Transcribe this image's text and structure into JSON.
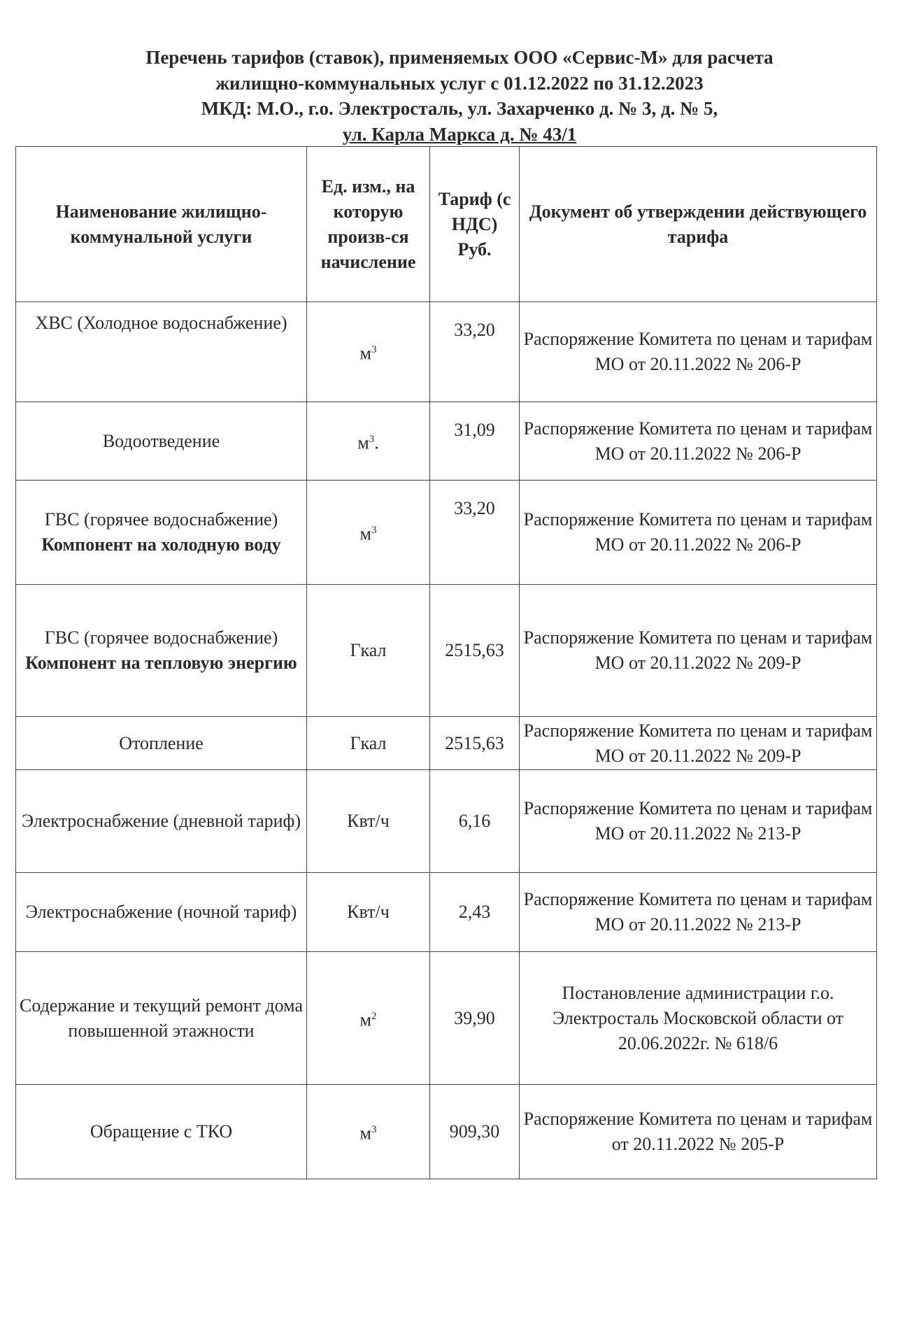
{
  "title": {
    "line1": "Перечень тарифов (ставок), применяемых ООО «Сервис-М» для расчета",
    "line2": "жилищно-коммунальных услуг с 01.12.2022 по 31.12.2023",
    "line3": "МКД: М.О., г.о. Электросталь, ул. Захарченко д. № 3, д. № 5,",
    "line4": "ул. Карла Маркса д. № 43/1"
  },
  "table": {
    "headers": [
      "Наименование жилищно-коммунальной услуги",
      "Ед. изм., на которую произв-ся начисление",
      "Тариф (с НДС) Руб.",
      "Документ об утверждении действующего тарифа"
    ],
    "rows": [
      {
        "service": "ХВС (Холодное водоснабжение)",
        "service_bold": "",
        "unit": "м",
        "unit_sup": "3",
        "unit_suffix": "",
        "tariff": "33,20",
        "document": "Распоряжение Комитета по ценам и тарифам МО от 20.11.2022 № 206-Р"
      },
      {
        "service": "Водоотведение",
        "service_bold": "",
        "unit": "м",
        "unit_sup": "3",
        "unit_suffix": ".",
        "tariff": "31,09",
        "document": "Распоряжение Комитета по ценам и тарифам МО от 20.11.2022 № 206-Р"
      },
      {
        "service": "ГВС (горячее водоснабжение)",
        "service_bold": "Компонент на холодную воду",
        "unit": "м",
        "unit_sup": "3",
        "unit_suffix": "",
        "tariff": "33,20",
        "document": "Распоряжение Комитета по ценам и тарифам МО от 20.11.2022 № 206-Р"
      },
      {
        "service": "ГВС (горячее водоснабжение)",
        "service_bold": "Компонент на тепловую энергию",
        "unit": "Гкал",
        "unit_sup": "",
        "unit_suffix": "",
        "tariff": "2515,63",
        "document": "Распоряжение Комитета по ценам и тарифам МО от 20.11.2022 № 209-Р"
      },
      {
        "service": "Отопление",
        "service_bold": "",
        "unit": "Гкал",
        "unit_sup": "",
        "unit_suffix": "",
        "tariff": "2515,63",
        "document": "Распоряжение Комитета по ценам и тарифам МО от 20.11.2022 № 209-Р"
      },
      {
        "service": "Электроснабжение (дневной тариф)",
        "service_bold": "",
        "unit": "Квт/ч",
        "unit_sup": "",
        "unit_suffix": "",
        "tariff": "6,16",
        "document": "Распоряжение Комитета по ценам и тарифам МО от 20.11.2022 № 213-Р"
      },
      {
        "service": "Электроснабжение (ночной тариф)",
        "service_bold": "",
        "unit": "Квт/ч",
        "unit_sup": "",
        "unit_suffix": "",
        "tariff": "2,43",
        "document": "Распоряжение Комитета по ценам и тарифам МО от 20.11.2022 № 213-Р"
      },
      {
        "service": "Содержание и текущий ремонт дома повышенной этажности",
        "service_bold": "",
        "unit": "м",
        "unit_sup": "2",
        "unit_suffix": "",
        "tariff": "39,90",
        "document": "Постановление администрации г.о. Электросталь Московской области от 20.06.2022г. № 618/6"
      },
      {
        "service": "Обращение с ТКО",
        "service_bold": "",
        "unit": "м",
        "unit_sup": "3",
        "unit_suffix": "",
        "tariff": "909,30",
        "document": "Распоряжение Комитета по ценам и тарифам от 20.11.2022 № 205-Р"
      }
    ]
  }
}
